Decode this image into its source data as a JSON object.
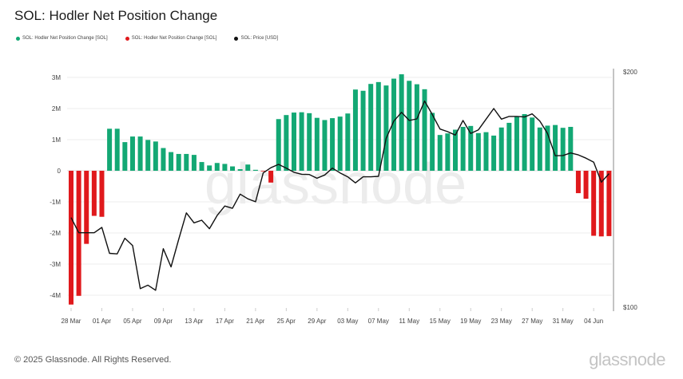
{
  "title": "SOL: Hodler Net Position Change",
  "footer": "© 2025 Glassnode. All Rights Reserved.",
  "logo": "glassnode",
  "watermark": "glassnode",
  "colors": {
    "positive": "#13a874",
    "negative": "#e0191c",
    "price": "#111111",
    "grid": "#eeeeee"
  },
  "legend": [
    {
      "label": "SOL: Hodler Net Position Change [SOL]",
      "color": "#13a874"
    },
    {
      "label": "SOL: Hodler Net Position Change [SOL]",
      "color": "#e0191c"
    },
    {
      "label": "SOL: Price [USD]",
      "color": "#111111"
    }
  ],
  "chart_data": {
    "type": "bar+line",
    "title": "SOL: Hodler Net Position Change",
    "start_date": "2025-03-28",
    "x_tick_labels": [
      "28 Mar",
      "01 Apr",
      "05 Apr",
      "09 Apr",
      "13 Apr",
      "17 Apr",
      "21 Apr",
      "25 Apr",
      "29 Apr",
      "03 May",
      "07 May",
      "11 May",
      "15 May",
      "19 May",
      "23 May",
      "27 May",
      "31 May",
      "04 Jun"
    ],
    "x_tick_every_days": 4,
    "y_left": {
      "ticks": [
        3,
        2,
        1,
        0,
        -1,
        -2,
        -3,
        -4
      ],
      "tick_labels": [
        "3M",
        "2M",
        "1M",
        "0",
        "-1M",
        "-2M",
        "-3M",
        "-4M"
      ],
      "ylim": [
        -4.4,
        3.3
      ],
      "unit": "M SOL"
    },
    "y_right": {
      "tick_labels": [
        "$200",
        "$100"
      ],
      "ylim": [
        100,
        200
      ],
      "scale": "log"
    },
    "grid": true,
    "legend_placement": "top-left",
    "series": [
      {
        "name": "SOL: Hodler Net Position Change [SOL]",
        "type": "bar",
        "unit": "M SOL",
        "values": [
          -4.3,
          -4.02,
          -2.35,
          -1.45,
          -1.48,
          1.35,
          1.35,
          0.92,
          1.1,
          1.1,
          0.99,
          0.94,
          0.73,
          0.6,
          0.54,
          0.54,
          0.51,
          0.28,
          0.17,
          0.25,
          0.22,
          0.14,
          0.05,
          0.2,
          0.03,
          -0.01,
          -0.38,
          1.66,
          1.79,
          1.87,
          1.88,
          1.85,
          1.7,
          1.63,
          1.69,
          1.74,
          1.84,
          2.61,
          2.57,
          2.79,
          2.85,
          2.74,
          2.96,
          3.1,
          2.89,
          2.78,
          2.62,
          1.86,
          1.15,
          1.2,
          1.32,
          1.41,
          1.44,
          1.21,
          1.24,
          1.13,
          1.39,
          1.54,
          1.75,
          1.82,
          1.71,
          1.39,
          1.45,
          1.47,
          1.38,
          1.41,
          -0.72,
          -0.9,
          -2.09,
          -2.11,
          -2.1
        ]
      },
      {
        "name": "SOL: Price [USD]",
        "type": "line",
        "unit": "USD",
        "values": [
          130.2,
          124.5,
          124.5,
          124.5,
          126.5,
          117.2,
          117.0,
          122.5,
          119.9,
          105.6,
          106.7,
          105.1,
          118.8,
          112.6,
          122.1,
          132.0,
          128.2,
          129.2,
          126.0,
          131.0,
          134.7,
          133.8,
          139.5,
          137.6,
          136.4,
          148.5,
          150.8,
          152.3,
          150.6,
          148.8,
          147.9,
          147.8,
          146.2,
          147.6,
          150.6,
          148.5,
          146.8,
          144.2,
          146.8,
          146.8,
          147.0,
          164.4,
          173.0,
          177.5,
          173.3,
          174.1,
          183.5,
          176.4,
          169.0,
          167.7,
          166.0,
          173.3,
          166.8,
          168.6,
          174.0,
          179.5,
          174.0,
          175.4,
          175.4,
          175.1,
          176.7,
          173.0,
          166.8,
          156.2,
          156.3,
          157.5,
          156.6,
          155.1,
          153.3,
          144.5,
          148.2
        ]
      }
    ]
  }
}
